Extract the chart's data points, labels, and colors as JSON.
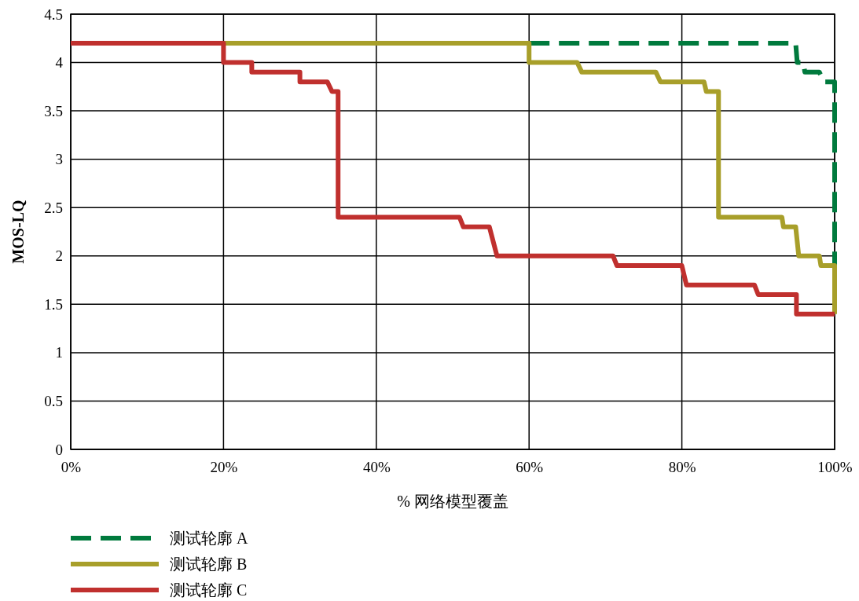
{
  "chart_data": {
    "type": "line",
    "xlabel": "% 网络模型覆盖",
    "ylabel": "MOS-LQ",
    "xlim": [
      0,
      100
    ],
    "ylim": [
      0,
      4.5
    ],
    "xticks": [
      {
        "value": 0,
        "label": "0%"
      },
      {
        "value": 20,
        "label": "20%"
      },
      {
        "value": 40,
        "label": "40%"
      },
      {
        "value": 60,
        "label": "60%"
      },
      {
        "value": 80,
        "label": "80%"
      },
      {
        "value": 100,
        "label": "100%"
      }
    ],
    "yticks": [
      0,
      0.5,
      1,
      1.5,
      2,
      2.5,
      3,
      3.5,
      4,
      4.5
    ],
    "grid": true,
    "legend": "bottom left",
    "marker": "none",
    "series": [
      {
        "name": "测试轮廓 A",
        "color": "#007a3d",
        "line_style": "dashed",
        "x": [
          60,
          94.9,
          95.1,
          95.9,
          96.1,
          98.0,
          98.6,
          100,
          100
        ],
        "values": [
          4.2,
          4.2,
          4.0,
          4.0,
          3.9,
          3.9,
          3.8,
          3.8,
          1.9
        ]
      },
      {
        "name": "测试轮廓 B",
        "color": "#a89f2a",
        "line_style": "solid",
        "x": [
          20,
          60,
          60,
          66.3,
          66.9,
          76.6,
          77.2,
          82.9,
          83.2,
          84.8,
          84.8,
          93.1,
          93.3,
          94.9,
          95.3,
          98.0,
          98.2,
          100,
          100
        ],
        "values": [
          4.2,
          4.2,
          4.0,
          4.0,
          3.9,
          3.9,
          3.8,
          3.8,
          3.7,
          3.7,
          2.4,
          2.4,
          2.3,
          2.3,
          2.0,
          2.0,
          1.9,
          1.9,
          1.4
        ]
      },
      {
        "name": "测试轮廓 C",
        "color": "#c0302e",
        "line_style": "solid",
        "x": [
          0,
          20,
          20,
          23.7,
          23.7,
          30.0,
          30.0,
          33.6,
          34.2,
          35.0,
          35.0,
          50.9,
          51.4,
          54.8,
          55.8,
          71.0,
          71.5,
          80.0,
          80.6,
          89.5,
          90.0,
          95.0,
          95.0,
          100
        ],
        "values": [
          4.2,
          4.2,
          4.0,
          4.0,
          3.9,
          3.9,
          3.8,
          3.8,
          3.7,
          3.7,
          2.4,
          2.4,
          2.3,
          2.3,
          2.0,
          2.0,
          1.9,
          1.9,
          1.7,
          1.7,
          1.6,
          1.6,
          1.4,
          1.4
        ]
      }
    ]
  }
}
